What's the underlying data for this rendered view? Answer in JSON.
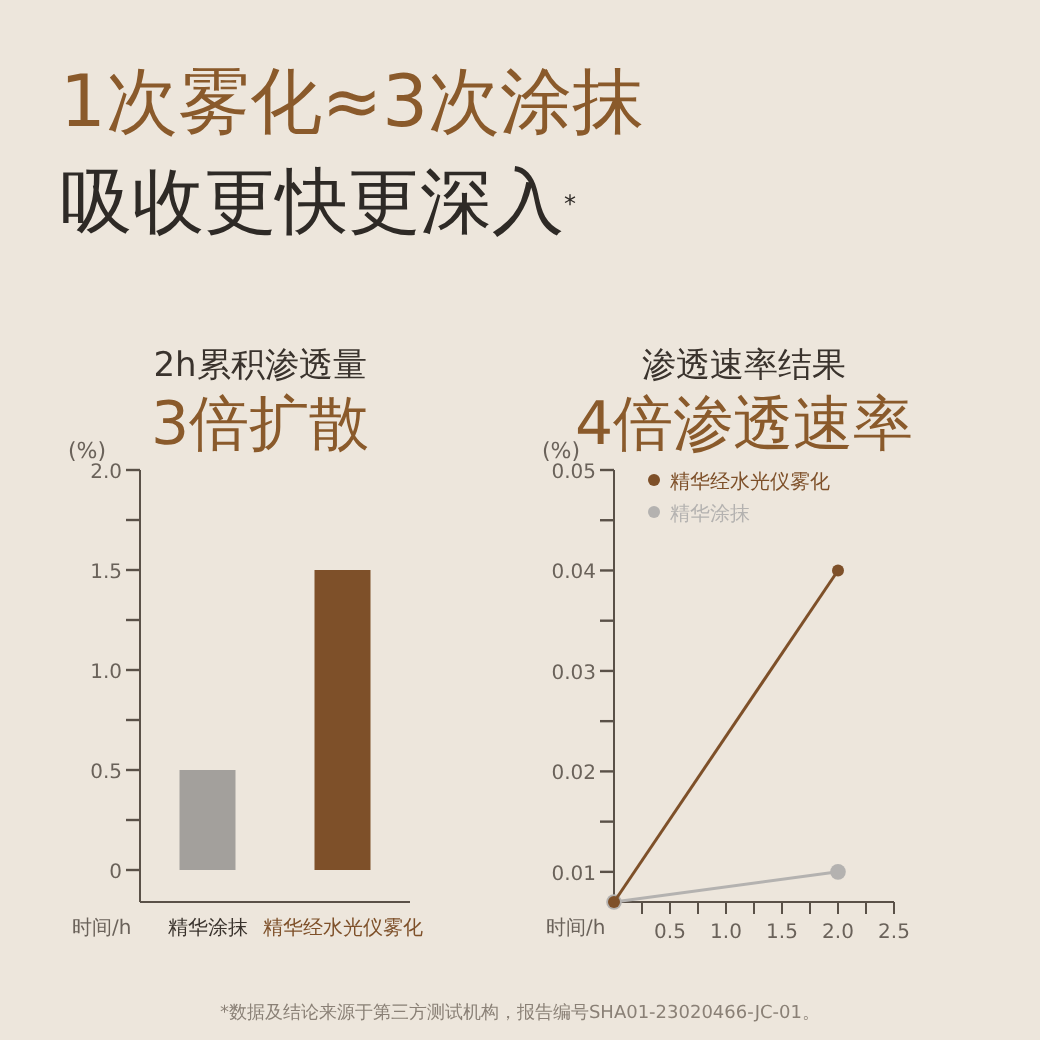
{
  "chart_data": [
    {
      "type": "bar",
      "title": "2h累积渗透量",
      "subtitle": "3倍扩散",
      "ylabel": "(%)",
      "xlabel": "时间/h",
      "annotations": [
        "1次雾化≈3次涂抹",
        "吸收更快更深入$^{*}$"
      ],
      "categories": [
        "精华涂抹",
        "精华经水光仪雾化"
      ],
      "values": [
        0.5,
        1.5
      ],
      "colors": [
        "#a3a09c",
        "#7e5029"
      ],
      "ylim": [
        -0.16,
        2.0
      ],
      "yticks": [
        {
          "value": 0,
          "label": "0"
        },
        {
          "value": 0.25,
          "label": null
        },
        0.5,
        {
          "value": 0.75,
          "label": null
        },
        {
          "value": 1,
          "label": "1.0"
        },
        {
          "value": 1.25,
          "label": null
        },
        1.5,
        {
          "value": 1.75,
          "label": null
        },
        {
          "value": 2,
          "label": "2.0"
        }
      ],
      "grid": false
    },
    {
      "type": "line",
      "title": "渗透速率结果",
      "subtitle": "4倍渗透速率",
      "ylabel": "(%)",
      "xlabel": "时间/h",
      "annotations": [
        "*数据及结论来源于第三方测试机构，报告编号SHA01-23020466-JC-01。"
      ],
      "x": [
        0,
        2
      ],
      "series": [
        {
          "name": "精华经水光仪雾化",
          "color": "#7e5029",
          "values": [
            0.007,
            0.04
          ]
        },
        {
          "name": "精华涂抹",
          "color": "#b4b2b0",
          "values": [
            0.007,
            0.01
          ]
        }
      ],
      "xlim": [
        0,
        2.5
      ],
      "xticks": [
        {
          "value": 0.25,
          "label": null
        },
        0.5,
        {
          "value": 0.75,
          "label": null
        },
        {
          "value": 1,
          "label": "1.0"
        },
        {
          "value": 1.25,
          "label": null
        },
        1.5,
        {
          "value": 1.75,
          "label": null
        },
        {
          "value": 2,
          "label": "2.0"
        },
        {
          "value": 2.25,
          "label": null
        },
        2.5
      ],
      "ylim": [
        0.007,
        0.05
      ],
      "yticks": [
        0.01,
        {
          "value": 0.015,
          "label": null
        },
        0.02,
        {
          "value": 0.025,
          "label": null
        },
        0.03,
        {
          "value": 0.035,
          "label": null
        },
        0.04,
        {
          "value": 0.045,
          "label": null
        },
        0.05
      ],
      "marker": "circle",
      "grid": false,
      "legend": "top left"
    }
  ]
}
